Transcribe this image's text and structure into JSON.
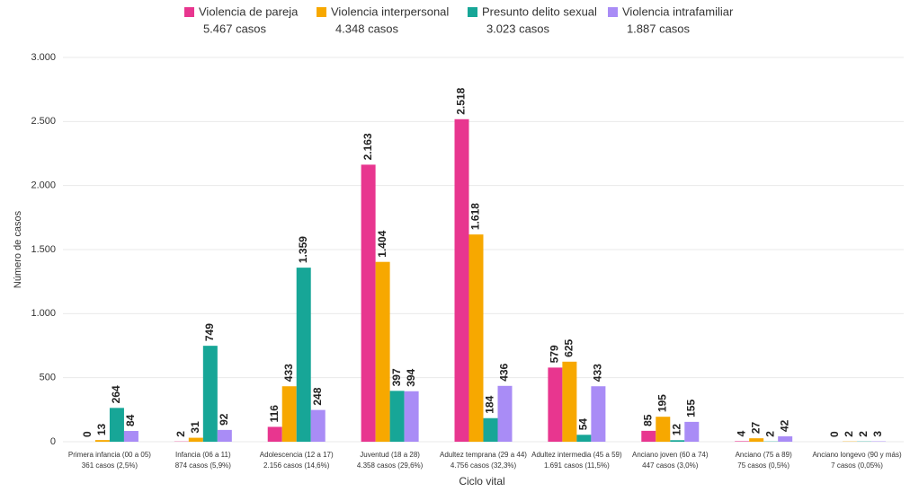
{
  "chart_data": {
    "type": "bar",
    "xlabel": "Ciclo vital",
    "ylabel": "Número de casos",
    "categories": [
      "Primera infancia (00 a 05)",
      "Infancia (06 a 11)",
      "Adolescencia (12 a 17)",
      "Juventud (18 a 28)",
      "Adultez temprana (29 a 44)",
      "Adultez intermedia (45 a 59)",
      "Anciano joven (60 a 74)",
      "Anciano (75 a 89)",
      "Anciano longevo (90 y más)"
    ],
    "category_notes": [
      "361 casos (2,5%)",
      "874 casos (5,9%)",
      "2.156 casos (14,6%)",
      "4.358 casos (29,6%)",
      "4.756 casos (32,3%)",
      "1.691 casos (11,5%)",
      "447 casos (3,0%)",
      "75 casos (0,5%)",
      "7 casos (0,05%)"
    ],
    "series": [
      {
        "name": "Violencia de pareja",
        "total_label": "5.467 casos",
        "color": "#e8368f",
        "values": [
          0,
          2,
          116,
          2163,
          2518,
          579,
          85,
          4,
          0
        ],
        "value_labels": [
          "0",
          "2",
          "116",
          "2.163",
          "2.518",
          "579",
          "85",
          "4",
          "0"
        ]
      },
      {
        "name": "Violencia interpersonal",
        "total_label": "4.348 casos",
        "color": "#f7a800",
        "values": [
          13,
          31,
          433,
          1404,
          1618,
          625,
          195,
          27,
          2
        ],
        "value_labels": [
          "13",
          "31",
          "433",
          "1.404",
          "1.618",
          "625",
          "195",
          "27",
          "2"
        ]
      },
      {
        "name": "Presunto delito sexual",
        "total_label": "3.023 casos",
        "color": "#17a697",
        "values": [
          264,
          749,
          1359,
          397,
          184,
          54,
          12,
          2,
          2
        ],
        "value_labels": [
          "264",
          "749",
          "1.359",
          "397",
          "184",
          "54",
          "12",
          "2",
          "2"
        ]
      },
      {
        "name": "Violencia intrafamiliar",
        "total_label": "1.887 casos",
        "color": "#a98cf6",
        "values": [
          84,
          92,
          248,
          394,
          436,
          433,
          155,
          42,
          3
        ],
        "value_labels": [
          "84",
          "92",
          "248",
          "394",
          "436",
          "433",
          "155",
          "42",
          "3"
        ]
      }
    ],
    "ylim": [
      0,
      3000
    ],
    "yticks": [
      0,
      500,
      {
        "value": 1000,
        "label": "1.000"
      },
      {
        "value": 1500,
        "label": "1.500"
      },
      {
        "value": 2000,
        "label": "2.000"
      },
      {
        "value": 2500,
        "label": "2.500"
      },
      {
        "value": 3000,
        "label": "3.000"
      }
    ],
    "grid": true
  }
}
